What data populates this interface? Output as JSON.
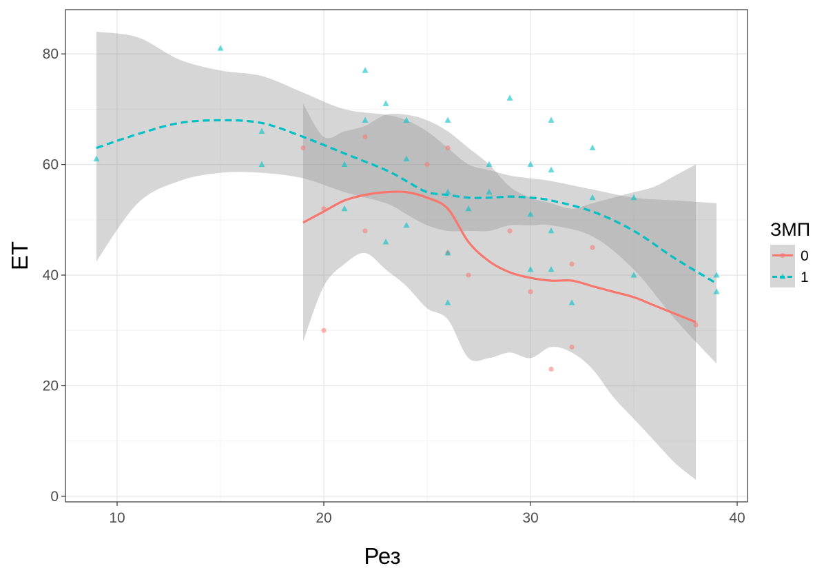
{
  "chart_data": {
    "type": "scatter",
    "xlabel": "Рез",
    "ylabel": "ЕТ",
    "xlim": [
      7.5,
      40.5
    ],
    "ylim": [
      -1,
      88
    ],
    "x_ticks": [
      10,
      20,
      30,
      40
    ],
    "y_ticks": [
      0,
      20,
      40,
      60,
      80
    ],
    "grid": true,
    "legend": {
      "title": "ЗМП",
      "position": "right",
      "entries": [
        "0",
        "1"
      ]
    },
    "colors": {
      "0": "#F8766D",
      "1": "#00BFC4",
      "band": "#999999"
    },
    "series": [
      {
        "name": "0",
        "marker": "circle",
        "line_style": "solid",
        "points": [
          {
            "x": 19,
            "y": 63
          },
          {
            "x": 20,
            "y": 52
          },
          {
            "x": 20,
            "y": 30
          },
          {
            "x": 22,
            "y": 65
          },
          {
            "x": 22,
            "y": 48
          },
          {
            "x": 25,
            "y": 60
          },
          {
            "x": 26,
            "y": 63
          },
          {
            "x": 26,
            "y": 44
          },
          {
            "x": 27,
            "y": 40
          },
          {
            "x": 29,
            "y": 48
          },
          {
            "x": 30,
            "y": 37
          },
          {
            "x": 31,
            "y": 23
          },
          {
            "x": 32,
            "y": 42
          },
          {
            "x": 32,
            "y": 27
          },
          {
            "x": 33,
            "y": 45
          },
          {
            "x": 38,
            "y": 31
          }
        ],
        "smooth": {
          "x": [
            19,
            20,
            21,
            22,
            23,
            24,
            25,
            26,
            27,
            28,
            29,
            30,
            31,
            32,
            33,
            34,
            35,
            36,
            37,
            38
          ],
          "y": [
            49.5,
            51.5,
            53.5,
            54.5,
            55,
            55,
            54,
            52,
            46,
            42.5,
            40.5,
            39.5,
            39,
            39,
            38,
            37,
            36,
            34.5,
            33,
            31.5
          ],
          "lower": [
            28,
            38,
            42,
            44,
            41,
            38,
            34,
            32,
            25,
            25,
            26,
            25,
            27,
            26,
            23,
            18,
            14,
            10,
            6,
            3
          ],
          "upper": [
            71,
            65,
            66,
            67,
            69,
            69,
            68,
            66,
            63,
            60,
            56,
            54,
            53,
            52,
            53,
            54,
            55,
            56,
            58,
            60
          ]
        }
      },
      {
        "name": "1",
        "marker": "triangle",
        "line_style": "dashed",
        "points": [
          {
            "x": 9,
            "y": 61
          },
          {
            "x": 15,
            "y": 81
          },
          {
            "x": 17,
            "y": 66
          },
          {
            "x": 17,
            "y": 60
          },
          {
            "x": 21,
            "y": 60
          },
          {
            "x": 21,
            "y": 52
          },
          {
            "x": 22,
            "y": 77
          },
          {
            "x": 22,
            "y": 68
          },
          {
            "x": 23,
            "y": 71
          },
          {
            "x": 23,
            "y": 46
          },
          {
            "x": 24,
            "y": 68
          },
          {
            "x": 24,
            "y": 61
          },
          {
            "x": 24,
            "y": 49
          },
          {
            "x": 26,
            "y": 68
          },
          {
            "x": 26,
            "y": 55
          },
          {
            "x": 26,
            "y": 44
          },
          {
            "x": 26,
            "y": 35
          },
          {
            "x": 27,
            "y": 52
          },
          {
            "x": 28,
            "y": 60
          },
          {
            "x": 28,
            "y": 55
          },
          {
            "x": 29,
            "y": 72
          },
          {
            "x": 30,
            "y": 60
          },
          {
            "x": 30,
            "y": 51
          },
          {
            "x": 30,
            "y": 41
          },
          {
            "x": 31,
            "y": 68
          },
          {
            "x": 31,
            "y": 59
          },
          {
            "x": 31,
            "y": 48
          },
          {
            "x": 31,
            "y": 41
          },
          {
            "x": 32,
            "y": 35
          },
          {
            "x": 33,
            "y": 63
          },
          {
            "x": 33,
            "y": 54
          },
          {
            "x": 35,
            "y": 54
          },
          {
            "x": 35,
            "y": 40
          },
          {
            "x": 39,
            "y": 40
          },
          {
            "x": 39,
            "y": 37
          }
        ],
        "smooth": {
          "x": [
            9,
            11,
            13,
            15,
            17,
            19,
            21,
            23,
            24,
            25,
            26,
            27,
            28,
            29,
            30,
            31,
            33,
            35,
            37,
            39
          ],
          "y": [
            63,
            65.5,
            67.5,
            68,
            67.5,
            65,
            62,
            59,
            57,
            55,
            54.5,
            54,
            54,
            54.2,
            54,
            53.5,
            51.5,
            48,
            43,
            38.5
          ],
          "lower": [
            42.5,
            53,
            57,
            58.5,
            58.5,
            57.5,
            55,
            53,
            51,
            49,
            48,
            48,
            48,
            49,
            49,
            49,
            47,
            41,
            32,
            24
          ],
          "upper": [
            84,
            83,
            79,
            77,
            76,
            73,
            70,
            69,
            68,
            66,
            63,
            60,
            59,
            58,
            57.5,
            57,
            55.5,
            54,
            53.5,
            53
          ]
        }
      }
    ]
  }
}
